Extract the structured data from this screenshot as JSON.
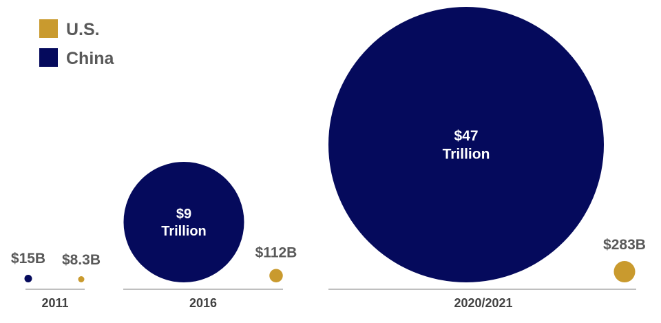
{
  "chart_data": {
    "type": "bubble",
    "legend": [
      {
        "name": "U.S.",
        "color": "#C99A2E"
      },
      {
        "name": "China",
        "color": "#050A5C"
      }
    ],
    "groups": [
      {
        "label": "2011",
        "points": [
          {
            "series": "China",
            "value_usd": 15000000000,
            "label": "$15B",
            "inner_text": []
          },
          {
            "series": "U.S.",
            "value_usd": 8300000000,
            "label": "$8.3B",
            "inner_text": []
          }
        ]
      },
      {
        "label": "2016",
        "points": [
          {
            "series": "China",
            "value_usd": 9000000000000,
            "label": "",
            "inner_text": [
              "$9",
              "Trillion"
            ]
          },
          {
            "series": "U.S.",
            "value_usd": 112000000000,
            "label": "$112B",
            "inner_text": []
          }
        ]
      },
      {
        "label": "2020/2021",
        "points": [
          {
            "series": "China",
            "value_usd": 47000000000000,
            "label": "",
            "inner_text": [
              "$47",
              "Trillion"
            ]
          },
          {
            "series": "U.S.",
            "value_usd": 283000000000,
            "label": "$283B",
            "inner_text": []
          }
        ]
      }
    ]
  }
}
